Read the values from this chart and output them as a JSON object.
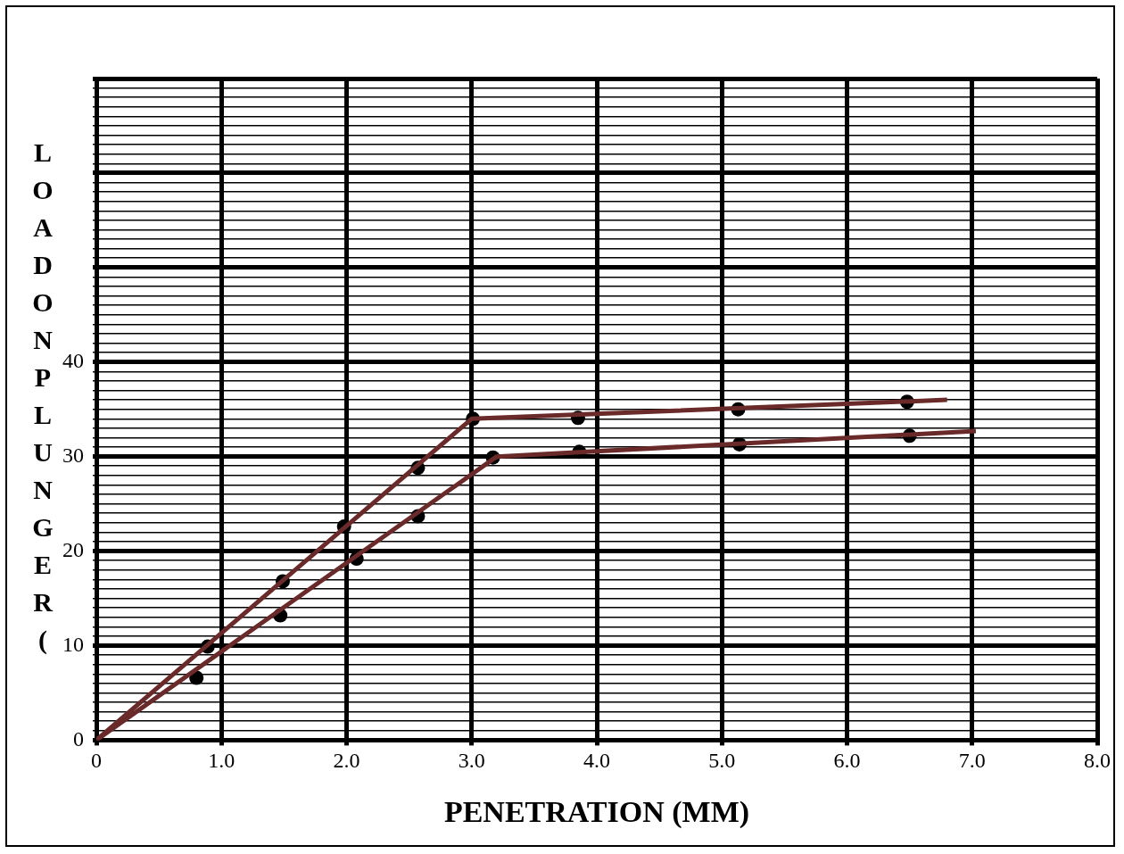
{
  "chart_data": {
    "type": "line",
    "xlabel": "PENETRATION (MM)",
    "ylabel": "LOADONPLUNGER(",
    "xlim": [
      0,
      8
    ],
    "xticks": [
      0,
      {
        "value": 1,
        "label": "1.0"
      },
      {
        "value": 2,
        "label": "2.0"
      },
      {
        "value": 3,
        "label": "3.0"
      },
      {
        "value": 4,
        "label": "4.0"
      },
      {
        "value": 5,
        "label": "5.0"
      },
      {
        "value": 6,
        "label": "6.0"
      },
      {
        "value": 7,
        "label": "7.0"
      },
      {
        "value": 8,
        "label": "8.0"
      }
    ],
    "ylim": [
      0,
      70
    ],
    "yticks": [
      0,
      {
        "value": 1,
        "label": null
      },
      {
        "value": 2,
        "label": null
      },
      {
        "value": 3,
        "label": null
      },
      {
        "value": 4,
        "label": null
      },
      {
        "value": 5,
        "label": null
      },
      {
        "value": 6,
        "label": null
      },
      {
        "value": 7,
        "label": null
      },
      {
        "value": 8,
        "label": null
      },
      {
        "value": 9,
        "label": null
      },
      10,
      {
        "value": 11,
        "label": null
      },
      {
        "value": 12,
        "label": null
      },
      {
        "value": 13,
        "label": null
      },
      {
        "value": 14,
        "label": null
      },
      {
        "value": 15,
        "label": null
      },
      {
        "value": 16,
        "label": null
      },
      {
        "value": 17,
        "label": null
      },
      {
        "value": 18,
        "label": null
      },
      {
        "value": 19,
        "label": null
      },
      20,
      {
        "value": 21,
        "label": null
      },
      {
        "value": 22,
        "label": null
      },
      {
        "value": 23,
        "label": null
      },
      {
        "value": 24,
        "label": null
      },
      {
        "value": 25,
        "label": null
      },
      {
        "value": 26,
        "label": null
      },
      {
        "value": 27,
        "label": null
      },
      {
        "value": 28,
        "label": null
      },
      {
        "value": 29,
        "label": null
      },
      30,
      {
        "value": 31,
        "label": null
      },
      {
        "value": 32,
        "label": null
      },
      {
        "value": 33,
        "label": null
      },
      {
        "value": 34,
        "label": null
      },
      {
        "value": 35,
        "label": null
      },
      {
        "value": 36,
        "label": null
      },
      {
        "value": 37,
        "label": null
      },
      {
        "value": 38,
        "label": null
      },
      {
        "value": 39,
        "label": null
      },
      40,
      {
        "value": 41,
        "label": null
      },
      {
        "value": 42,
        "label": null
      },
      {
        "value": 43,
        "label": null
      },
      {
        "value": 44,
        "label": null
      },
      {
        "value": 45,
        "label": null
      },
      {
        "value": 46,
        "label": null
      },
      {
        "value": 47,
        "label": null
      },
      {
        "value": 48,
        "label": null
      },
      {
        "value": 49,
        "label": null
      },
      {
        "value": 50,
        "label": null
      },
      {
        "value": 51,
        "label": null
      },
      {
        "value": 52,
        "label": null
      },
      {
        "value": 53,
        "label": null
      },
      {
        "value": 54,
        "label": null
      },
      {
        "value": 55,
        "label": null
      },
      {
        "value": 56,
        "label": null
      },
      {
        "value": 57,
        "label": null
      },
      {
        "value": 58,
        "label": null
      },
      {
        "value": 59,
        "label": null
      },
      {
        "value": 60,
        "label": null
      },
      {
        "value": 61,
        "label": null
      },
      {
        "value": 62,
        "label": null
      },
      {
        "value": 63,
        "label": null
      },
      {
        "value": 64,
        "label": null
      },
      {
        "value": 65,
        "label": null
      },
      {
        "value": 66,
        "label": null
      },
      {
        "value": 67,
        "label": null
      },
      {
        "value": 68,
        "label": null
      },
      {
        "value": 69,
        "label": null
      },
      {
        "value": 70,
        "label": null
      }
    ],
    "grid": true,
    "legend": false,
    "series": [
      {
        "type": "line",
        "marker": "none",
        "color": "#6b2a2a",
        "x": [
          0,
          3.0,
          6.8
        ],
        "values": [
          0,
          34.0,
          36.0
        ]
      },
      {
        "type": "line",
        "marker": "none",
        "color": "#6b2a2a",
        "x": [
          0,
          3.2,
          7.03
        ],
        "values": [
          0,
          30.0,
          32.7
        ]
      },
      {
        "type": "scatter",
        "marker": "circle",
        "color": "#000000",
        "x": [
          0.89,
          1.49,
          1.98,
          2.57,
          3.01,
          3.85,
          5.13,
          6.48
        ],
        "values": [
          9.9,
          16.8,
          22.6,
          28.8,
          34.0,
          34.1,
          35.0,
          35.8
        ]
      },
      {
        "type": "scatter",
        "marker": "circle",
        "color": "#000000",
        "x": [
          0.8,
          1.47,
          2.08,
          2.57,
          3.17,
          3.86,
          5.14,
          6.5
        ],
        "values": [
          6.6,
          13.2,
          19.2,
          23.7,
          29.9,
          30.5,
          31.3,
          32.2
        ]
      }
    ]
  }
}
